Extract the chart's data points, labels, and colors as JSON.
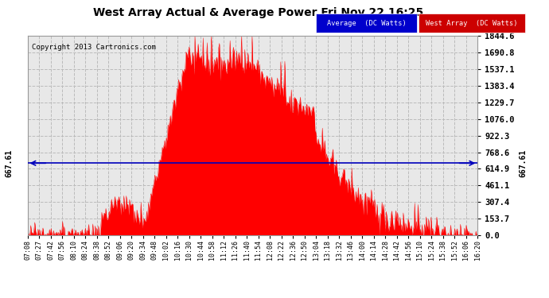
{
  "title": "West Array Actual & Average Power Fri Nov 22 16:25",
  "copyright": "Copyright 2013 Cartronics.com",
  "y_ticks": [
    0.0,
    153.7,
    307.4,
    461.1,
    614.9,
    768.6,
    922.3,
    1076.0,
    1229.7,
    1383.4,
    1537.1,
    1690.8,
    1844.6
  ],
  "y_max": 1844.6,
  "y_min": 0.0,
  "average_value": 667.61,
  "average_label": "667.61",
  "legend_average_label": "Average  (DC Watts)",
  "legend_west_label": "West Array  (DC Watts)",
  "bg_color": "#ffffff",
  "plot_bg_color": "#e8e8e8",
  "grid_color": "#bbbbbb",
  "fill_color": "#ff0000",
  "line_color": "#ff0000",
  "average_line_color": "#0000bb",
  "x_labels": [
    "07:08",
    "07:27",
    "07:42",
    "07:56",
    "08:10",
    "08:24",
    "08:38",
    "08:52",
    "09:06",
    "09:20",
    "09:34",
    "09:48",
    "10:02",
    "10:16",
    "10:30",
    "10:44",
    "10:58",
    "11:12",
    "11:26",
    "11:40",
    "11:54",
    "12:08",
    "12:22",
    "12:36",
    "12:50",
    "13:04",
    "13:18",
    "13:32",
    "13:46",
    "14:00",
    "14:14",
    "14:28",
    "14:42",
    "14:56",
    "15:10",
    "15:24",
    "15:38",
    "15:52",
    "16:06",
    "16:20"
  ]
}
